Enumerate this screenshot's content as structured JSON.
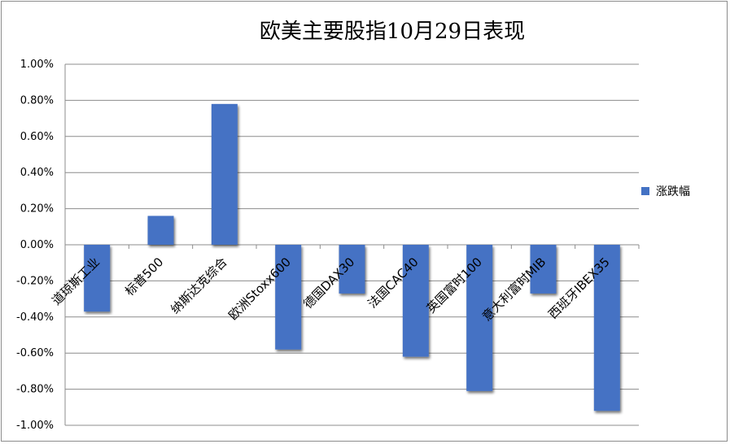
{
  "chart_data": {
    "type": "bar",
    "title": "欧美主要股指10月29日表现",
    "categories": [
      "道琼斯工业",
      "标普500",
      "纳斯达克综合",
      "欧洲Stoxx600",
      "德国DAX30",
      "法国CAC40",
      "英国富时100",
      "意大利富时MIB",
      "西班牙IBEX35"
    ],
    "series": [
      {
        "name": "涨跌幅",
        "values": [
          -0.37,
          0.16,
          0.78,
          -0.58,
          -0.27,
          -0.62,
          -0.81,
          -0.27,
          -0.92
        ]
      }
    ],
    "ylim": [
      -1.0,
      1.0
    ],
    "yticks": [
      "1.00%",
      "0.80%",
      "0.60%",
      "0.40%",
      "0.20%",
      "0.00%",
      "-0.20%",
      "-0.40%",
      "-0.60%",
      "-0.80%",
      "-1.00%"
    ],
    "grid": true,
    "legend": "right",
    "bar_color": "#4472c4",
    "grid_color": "#8c8c8c"
  }
}
